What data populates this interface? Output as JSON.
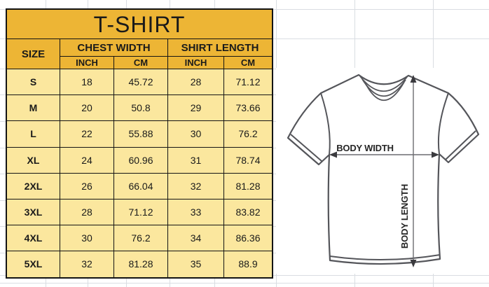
{
  "title": "T-SHIRT",
  "table": {
    "headers": {
      "size": "SIZE",
      "chest_width": "CHEST WIDTH",
      "shirt_length": "SHIRT LENGTH"
    },
    "units": {
      "inch": "INCH",
      "cm": "CM"
    },
    "rows": [
      {
        "size": "S",
        "values": [
          "18",
          "45.72",
          "28",
          "71.12"
        ]
      },
      {
        "size": "M",
        "values": [
          "20",
          "50.8",
          "29",
          "73.66"
        ]
      },
      {
        "size": "L",
        "values": [
          "22",
          "55.88",
          "30",
          "76.2"
        ]
      },
      {
        "size": "XL",
        "values": [
          "24",
          "60.96",
          "31",
          "78.74"
        ]
      },
      {
        "size": "2XL",
        "values": [
          "26",
          "66.04",
          "32",
          "81.28"
        ]
      },
      {
        "size": "3XL",
        "values": [
          "28",
          "71.12",
          "33",
          "83.82"
        ]
      },
      {
        "size": "4XL",
        "values": [
          "30",
          "76.2",
          "34",
          "86.36"
        ]
      },
      {
        "size": "5XL",
        "values": [
          "32",
          "81.28",
          "35",
          "88.9"
        ]
      }
    ]
  },
  "diagram": {
    "body_width_label": "BODY WIDTH",
    "body_length_label": "BODY LENGTH"
  },
  "colors": {
    "header_bg": "#EDB535",
    "row_bg": "#FBE79E",
    "table_border": "#141414",
    "grid_line": "#D9DDE2",
    "shirt_outline": "#54555A",
    "text": "#1A1A1A"
  },
  "chart_data": {
    "type": "table",
    "title": "T-SHIRT",
    "columns": [
      "SIZE",
      "CHEST WIDTH (INCH)",
      "CHEST WIDTH (CM)",
      "SHIRT LENGTH (INCH)",
      "SHIRT LENGTH (CM)"
    ],
    "rows": [
      [
        "S",
        18,
        45.72,
        28,
        71.12
      ],
      [
        "M",
        20,
        50.8,
        29,
        73.66
      ],
      [
        "L",
        22,
        55.88,
        30,
        76.2
      ],
      [
        "XL",
        24,
        60.96,
        31,
        78.74
      ],
      [
        "2XL",
        26,
        66.04,
        32,
        81.28
      ],
      [
        "3XL",
        28,
        71.12,
        33,
        83.82
      ],
      [
        "4XL",
        30,
        76.2,
        34,
        86.36
      ],
      [
        "5XL",
        32,
        81.28,
        35,
        88.9
      ]
    ]
  }
}
